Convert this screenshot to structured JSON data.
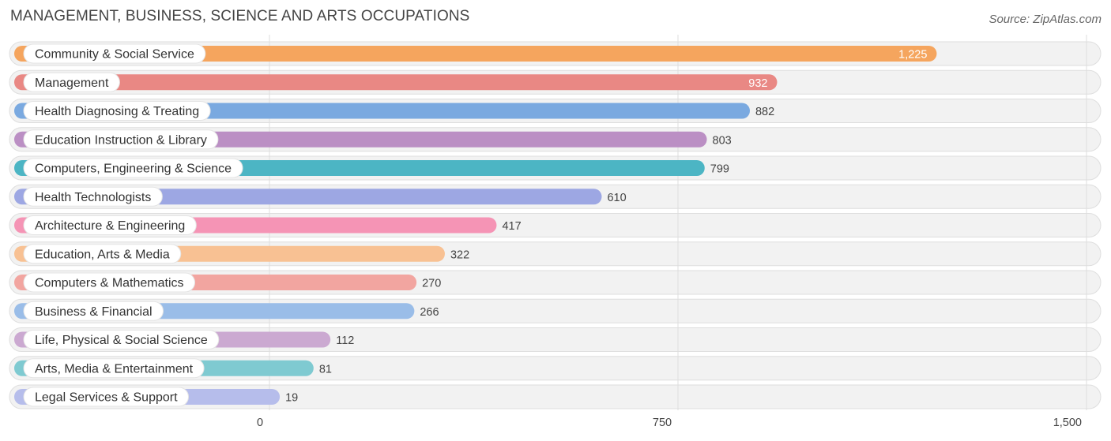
{
  "title": "MANAGEMENT, BUSINESS, SCIENCE AND ARTS OCCUPATIONS",
  "source": "Source: ZipAtlas.com",
  "chart_data": {
    "type": "bar",
    "orientation": "horizontal",
    "title": "MANAGEMENT, BUSINESS, SCIENCE AND ARTS OCCUPATIONS",
    "xlabel": "",
    "ylabel": "",
    "xlim": [
      0,
      1500
    ],
    "ticks": [
      0,
      750,
      1500
    ],
    "tick_labels": [
      "0",
      "750",
      "1,500"
    ],
    "grid": true,
    "categories": [
      "Community & Social Service",
      "Management",
      "Health Diagnosing & Treating",
      "Education Instruction & Library",
      "Computers, Engineering & Science",
      "Health Technologists",
      "Architecture & Engineering",
      "Education, Arts & Media",
      "Computers & Mathematics",
      "Business & Financial",
      "Life, Physical & Social Science",
      "Arts, Media & Entertainment",
      "Legal Services & Support"
    ],
    "values": [
      1225,
      932,
      882,
      803,
      799,
      610,
      417,
      322,
      270,
      266,
      112,
      81,
      19
    ],
    "value_labels": [
      "1,225",
      "932",
      "882",
      "803",
      "799",
      "610",
      "417",
      "322",
      "270",
      "266",
      "112",
      "81",
      "19"
    ],
    "colors": [
      "#f5a55e",
      "#e98884",
      "#7aa9e0",
      "#bb8fc4",
      "#4cb5c4",
      "#9da7e3",
      "#f594b5",
      "#f8c193",
      "#f2a5a0",
      "#9abde8",
      "#cba9d1",
      "#7fcad1",
      "#b6bdeb"
    ]
  }
}
